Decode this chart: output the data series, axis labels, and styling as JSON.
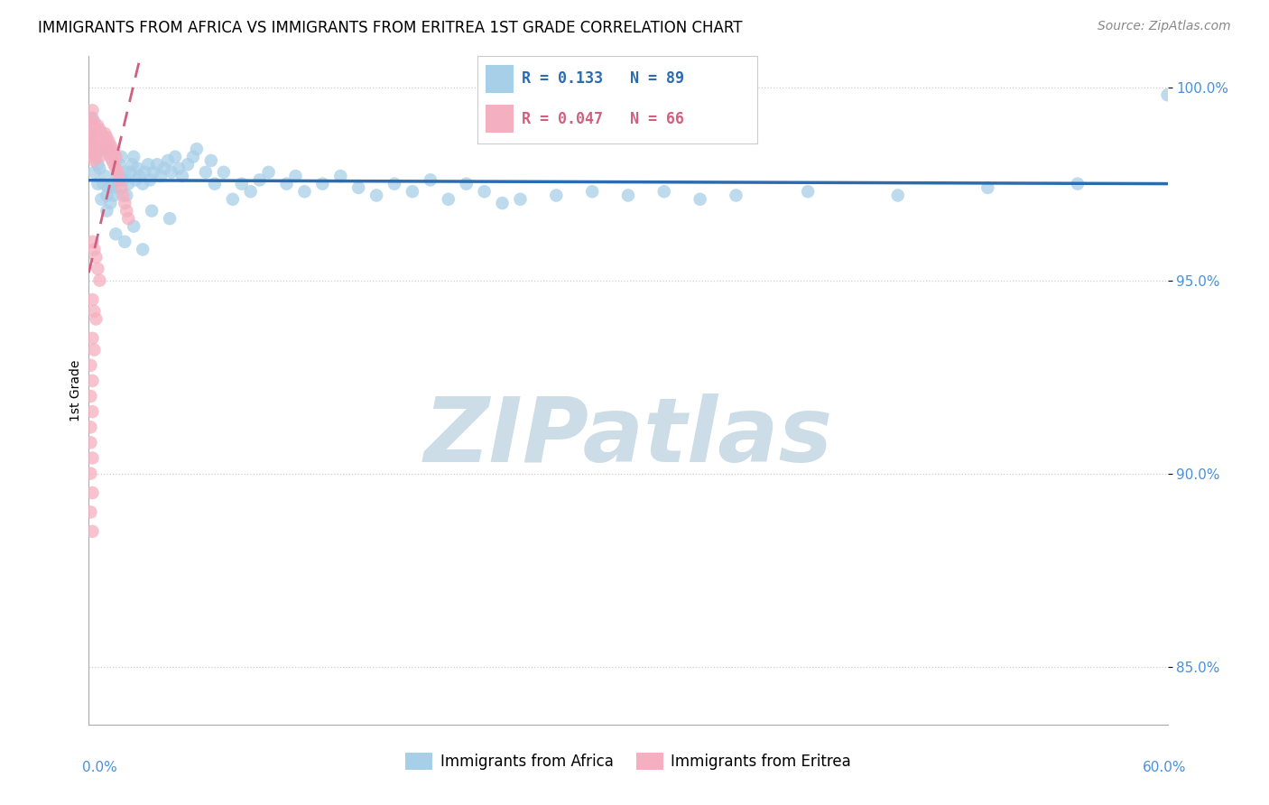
{
  "title": "IMMIGRANTS FROM AFRICA VS IMMIGRANTS FROM ERITREA 1ST GRADE CORRELATION CHART",
  "source": "Source: ZipAtlas.com",
  "ylabel": "1st Grade",
  "legend_blue_R": "R = 0.133",
  "legend_blue_N": "N = 89",
  "legend_pink_R": "R = 0.047",
  "legend_pink_N": "N = 66",
  "blue_color": "#a8cfe8",
  "pink_color": "#f4afc0",
  "blue_line_color": "#2b6cb0",
  "pink_line_color": "#d06080",
  "axis_label_color": "#4a90d9",
  "grid_color": "#c8c8c8",
  "watermark_color": "#cddde8",
  "xlim": [
    0.0,
    0.6
  ],
  "ylim": [
    0.835,
    1.008
  ],
  "yticks": [
    0.85,
    0.9,
    0.95,
    1.0
  ],
  "ytick_labels": [
    "85.0%",
    "90.0%",
    "95.0%",
    "100.0%"
  ],
  "blue_x": [
    0.001,
    0.002,
    0.002,
    0.003,
    0.004,
    0.005,
    0.005,
    0.006,
    0.007,
    0.007,
    0.008,
    0.009,
    0.01,
    0.01,
    0.011,
    0.012,
    0.013,
    0.014,
    0.015,
    0.016,
    0.017,
    0.018,
    0.019,
    0.02,
    0.021,
    0.022,
    0.023,
    0.024,
    0.025,
    0.026,
    0.027,
    0.028,
    0.03,
    0.031,
    0.033,
    0.034,
    0.036,
    0.038,
    0.04,
    0.042,
    0.044,
    0.046,
    0.048,
    0.05,
    0.052,
    0.055,
    0.058,
    0.06,
    0.065,
    0.068,
    0.07,
    0.075,
    0.08,
    0.085,
    0.09,
    0.095,
    0.1,
    0.11,
    0.115,
    0.12,
    0.13,
    0.14,
    0.15,
    0.16,
    0.17,
    0.18,
    0.19,
    0.2,
    0.21,
    0.22,
    0.23,
    0.24,
    0.26,
    0.28,
    0.3,
    0.32,
    0.34,
    0.36,
    0.4,
    0.45,
    0.5,
    0.55,
    0.6,
    0.035,
    0.045,
    0.025,
    0.015,
    0.02,
    0.03
  ],
  "blue_y": [
    0.988,
    0.985,
    0.992,
    0.978,
    0.982,
    0.975,
    0.98,
    0.979,
    0.984,
    0.971,
    0.975,
    0.977,
    0.972,
    0.968,
    0.974,
    0.97,
    0.975,
    0.972,
    0.974,
    0.977,
    0.98,
    0.982,
    0.976,
    0.978,
    0.972,
    0.975,
    0.978,
    0.98,
    0.982,
    0.976,
    0.979,
    0.977,
    0.975,
    0.978,
    0.98,
    0.976,
    0.978,
    0.98,
    0.977,
    0.979,
    0.981,
    0.978,
    0.982,
    0.979,
    0.977,
    0.98,
    0.982,
    0.984,
    0.978,
    0.981,
    0.975,
    0.978,
    0.971,
    0.975,
    0.973,
    0.976,
    0.978,
    0.975,
    0.977,
    0.973,
    0.975,
    0.977,
    0.974,
    0.972,
    0.975,
    0.973,
    0.976,
    0.971,
    0.975,
    0.973,
    0.97,
    0.971,
    0.972,
    0.973,
    0.972,
    0.973,
    0.971,
    0.972,
    0.973,
    0.972,
    0.974,
    0.975,
    0.998,
    0.968,
    0.966,
    0.964,
    0.962,
    0.96,
    0.958
  ],
  "pink_x": [
    0.001,
    0.001,
    0.001,
    0.002,
    0.002,
    0.002,
    0.002,
    0.003,
    0.003,
    0.003,
    0.003,
    0.004,
    0.004,
    0.004,
    0.005,
    0.005,
    0.005,
    0.006,
    0.006,
    0.006,
    0.007,
    0.007,
    0.008,
    0.008,
    0.009,
    0.009,
    0.01,
    0.01,
    0.011,
    0.011,
    0.012,
    0.012,
    0.013,
    0.013,
    0.014,
    0.014,
    0.015,
    0.015,
    0.016,
    0.017,
    0.018,
    0.019,
    0.02,
    0.021,
    0.022,
    0.002,
    0.003,
    0.004,
    0.005,
    0.006,
    0.002,
    0.003,
    0.004,
    0.002,
    0.003,
    0.001,
    0.002,
    0.001,
    0.002,
    0.001,
    0.001,
    0.002,
    0.001,
    0.002,
    0.001,
    0.002
  ],
  "pink_y": [
    0.992,
    0.988,
    0.984,
    0.99,
    0.987,
    0.994,
    0.982,
    0.991,
    0.988,
    0.985,
    0.981,
    0.989,
    0.986,
    0.983,
    0.99,
    0.987,
    0.984,
    0.989,
    0.986,
    0.982,
    0.988,
    0.985,
    0.987,
    0.984,
    0.988,
    0.985,
    0.987,
    0.984,
    0.986,
    0.983,
    0.985,
    0.982,
    0.984,
    0.981,
    0.983,
    0.98,
    0.982,
    0.979,
    0.978,
    0.976,
    0.974,
    0.972,
    0.97,
    0.968,
    0.966,
    0.96,
    0.958,
    0.956,
    0.953,
    0.95,
    0.945,
    0.942,
    0.94,
    0.935,
    0.932,
    0.928,
    0.924,
    0.92,
    0.916,
    0.912,
    0.908,
    0.904,
    0.9,
    0.895,
    0.89,
    0.885
  ]
}
